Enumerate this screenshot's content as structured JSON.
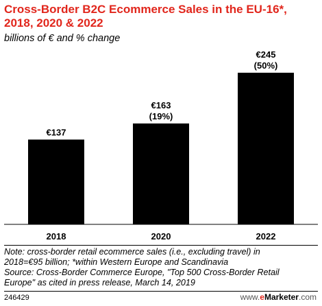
{
  "title_lines": [
    "Cross-Border B2C Ecommerce Sales in the EU-16*,",
    "2018, 2020 & 2022"
  ],
  "subtitle": "billions of € and % change",
  "chart_data": {
    "type": "bar",
    "title": "Cross-Border B2C Ecommerce Sales in the EU-16*, 2018, 2020 & 2022",
    "subtitle": "billions of € and % change",
    "categories": [
      "2018",
      "2020",
      "2022"
    ],
    "values": [
      137,
      163,
      245
    ],
    "value_labels": [
      "€137",
      "€163",
      "€245"
    ],
    "change_labels": [
      "",
      "(19%)",
      "(50%)"
    ],
    "ylim": [
      0,
      245
    ],
    "grid": false,
    "colors": {
      "bars": "#000000",
      "title": "#e1261c"
    }
  },
  "note_lines": [
    "Note: cross-border retail ecommerce sales (i.e., excluding travel) in",
    "2018=€95 billion; *within Western Europe and Scandinavia",
    "Source: Cross-Border Commerce Europe, \"Top 500 Cross-Border Retail",
    "Europe\" as cited in press release, March 14, 2019"
  ],
  "footer": {
    "chart_id": "246429",
    "brand_prefix": "www.",
    "brand_e": "e",
    "brand_name": "Marketer",
    "brand_suffix": ".com"
  }
}
